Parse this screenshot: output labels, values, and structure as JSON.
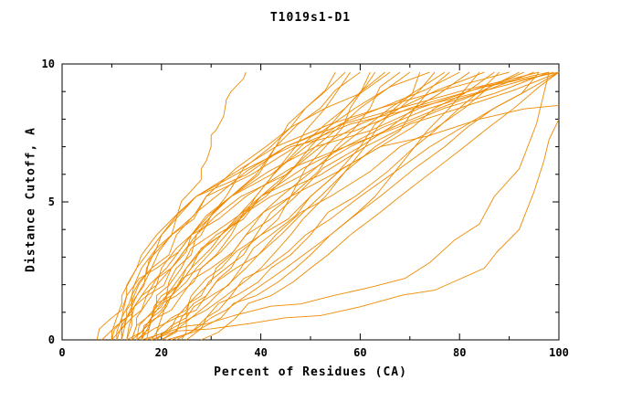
{
  "chart_data": {
    "type": "line",
    "title": "T1019s1-D1",
    "xlabel": "Percent of Residues (CA)",
    "ylabel": "Distance Cutoff, A",
    "xlim": [
      0,
      100
    ],
    "ylim": [
      0,
      10
    ],
    "x_ticks_major": [
      0,
      20,
      40,
      60,
      80,
      100
    ],
    "x_ticks_minor": [
      10,
      30,
      50,
      70,
      90
    ],
    "y_ticks_major": [
      0,
      5,
      10
    ],
    "y_ticks_minor": [
      1,
      2,
      3,
      4,
      6,
      7,
      8,
      9
    ],
    "grid": false,
    "legend": null,
    "line_color": "#ef8a00",
    "axis_color": "#000000",
    "background": "#ffffff",
    "series_y_anchors": [
      0,
      0.8,
      1.6,
      2.6,
      3.8,
      5.2,
      7,
      8.4,
      9.7
    ],
    "series_x": [
      [
        8,
        13,
        17,
        22,
        28,
        34,
        43,
        49,
        55
      ],
      [
        12,
        14,
        17,
        22,
        26,
        33,
        42,
        49,
        57
      ],
      [
        14,
        18,
        22,
        27,
        33,
        39,
        47,
        53,
        58
      ],
      [
        10,
        13,
        16,
        21,
        26,
        34,
        43,
        52,
        60
      ],
      [
        15,
        23,
        29,
        34,
        40,
        46,
        53,
        58,
        62
      ],
      [
        13,
        18,
        23,
        28,
        34,
        41,
        50,
        57,
        63
      ],
      [
        16,
        19,
        22,
        26,
        32,
        39,
        48,
        57,
        65
      ],
      [
        12,
        13,
        15,
        18,
        22,
        29,
        41,
        53,
        66
      ],
      [
        18,
        23,
        28,
        33,
        39,
        46,
        55,
        62,
        68
      ],
      [
        14,
        17,
        21,
        26,
        32,
        40,
        51,
        60,
        70
      ],
      [
        17,
        26,
        33,
        40,
        46,
        53,
        61,
        67,
        72
      ],
      [
        11,
        12,
        14,
        18,
        23,
        31,
        45,
        59,
        74
      ],
      [
        19,
        25,
        30,
        36,
        42,
        50,
        60,
        68,
        75
      ],
      [
        15,
        18,
        22,
        28,
        35,
        44,
        56,
        66,
        77
      ],
      [
        20,
        26,
        31,
        37,
        44,
        52,
        63,
        71,
        78
      ],
      [
        13,
        14,
        16,
        20,
        26,
        34,
        49,
        64,
        80
      ],
      [
        16,
        19,
        24,
        30,
        37,
        47,
        60,
        71,
        82
      ],
      [
        21,
        32,
        39,
        47,
        54,
        63,
        71,
        78,
        84
      ],
      [
        14,
        15,
        18,
        22,
        27,
        36,
        52,
        68,
        85
      ],
      [
        18,
        22,
        26,
        32,
        40,
        50,
        64,
        75,
        87
      ],
      [
        22,
        29,
        35,
        42,
        50,
        59,
        71,
        80,
        88
      ],
      [
        12,
        13,
        14,
        16,
        20,
        27,
        43,
        64,
        90
      ],
      [
        17,
        18,
        21,
        25,
        31,
        40,
        57,
        74,
        92
      ],
      [
        20,
        24,
        29,
        35,
        43,
        54,
        68,
        81,
        93
      ],
      [
        15,
        17,
        19,
        24,
        30,
        40,
        58,
        76,
        95
      ],
      [
        23,
        30,
        37,
        45,
        54,
        64,
        77,
        87,
        96
      ],
      [
        19,
        20,
        21,
        23,
        27,
        34,
        51,
        72,
        98
      ],
      [
        13,
        14,
        15,
        17,
        22,
        29,
        47,
        71,
        99
      ],
      [
        25,
        29,
        34,
        41,
        49,
        60,
        74,
        87,
        100
      ],
      [
        10,
        11,
        12,
        15,
        19,
        27,
        46,
        70,
        100
      ],
      [
        16,
        18,
        20,
        25,
        32,
        42,
        61,
        80,
        100
      ],
      [
        7,
        10,
        13,
        19,
        26,
        37,
        57,
        77,
        98
      ],
      [
        28,
        35,
        42,
        50,
        58,
        68,
        81,
        91,
        100
      ],
      [
        11,
        12,
        13,
        15,
        20,
        27,
        45,
        68,
        96
      ]
    ],
    "series_points": [
      [
        [
          10,
          0
        ],
        [
          12,
          0.7
        ],
        [
          14,
          1.4
        ],
        [
          17,
          2.4
        ],
        [
          20,
          3.4
        ],
        [
          23,
          4.4
        ],
        [
          26,
          5.4
        ],
        [
          28,
          6.2
        ],
        [
          30,
          7.0
        ],
        [
          31,
          7.6
        ],
        [
          33,
          8.6
        ],
        [
          34,
          9.0
        ],
        [
          37,
          9.7
        ]
      ],
      [
        [
          24,
          0
        ],
        [
          25,
          0.8
        ],
        [
          27,
          1.6
        ],
        [
          31,
          2.6
        ],
        [
          37,
          3.8
        ],
        [
          46,
          5.2
        ],
        [
          64,
          7.0
        ],
        [
          84,
          8.0
        ],
        [
          100,
          8.5
        ]
      ],
      [
        [
          18,
          0
        ],
        [
          30,
          0.4
        ],
        [
          45,
          0.8
        ],
        [
          60,
          1.2
        ],
        [
          75,
          1.8
        ],
        [
          85,
          2.6
        ],
        [
          92,
          4.0
        ],
        [
          97,
          6.5
        ],
        [
          100,
          8.0
        ]
      ],
      [
        [
          16,
          0
        ],
        [
          25,
          0.5
        ],
        [
          35,
          0.9
        ],
        [
          48,
          1.3
        ],
        [
          62,
          1.9
        ],
        [
          74,
          2.8
        ],
        [
          84,
          4.2
        ],
        [
          92,
          6.2
        ],
        [
          98,
          9.7
        ]
      ]
    ]
  }
}
